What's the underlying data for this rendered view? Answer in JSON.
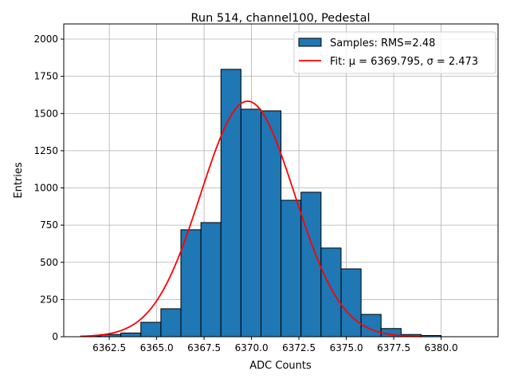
{
  "chart_data": {
    "type": "bar",
    "title": "Run 514, channel100, Pedestal",
    "xlabel": "ADC Counts",
    "ylabel": "Entries",
    "xlim": [
      6360.1,
      6383.0
    ],
    "ylim": [
      0,
      2102
    ],
    "grid": true,
    "legend_position": "top-right",
    "bin_range": [
      6361,
      6380
    ],
    "bin_count": 18,
    "values": [
      5,
      15,
      25,
      97,
      188,
      719,
      767,
      1797,
      1529,
      1518,
      917,
      971,
      596,
      456,
      150,
      55,
      15,
      8
    ],
    "x_ticks": [
      "6362.5",
      "6365.0",
      "6367.5",
      "6370.0",
      "6372.5",
      "6375.0",
      "6377.5",
      "6380.0"
    ],
    "x_tick_values": [
      6362.5,
      6365,
      6367.5,
      6370,
      6372.5,
      6375,
      6377.5,
      6380
    ],
    "y_ticks": [
      "0",
      "250",
      "500",
      "750",
      "1000",
      "1250",
      "1500",
      "1750",
      "2000"
    ],
    "y_tick_values": [
      0,
      250,
      500,
      750,
      1000,
      1250,
      1500,
      1750,
      2000
    ],
    "fit": {
      "amplitude": 1583,
      "mu": 6369.795,
      "sigma": 2.473,
      "range": [
        6361,
        6379
      ]
    },
    "legend": [
      {
        "label": "Samples: RMS=2.48",
        "color": "#1f77b4"
      },
      {
        "label": "Fit: μ = 6369.795, σ = 2.473",
        "color": "#ff0000"
      }
    ]
  }
}
